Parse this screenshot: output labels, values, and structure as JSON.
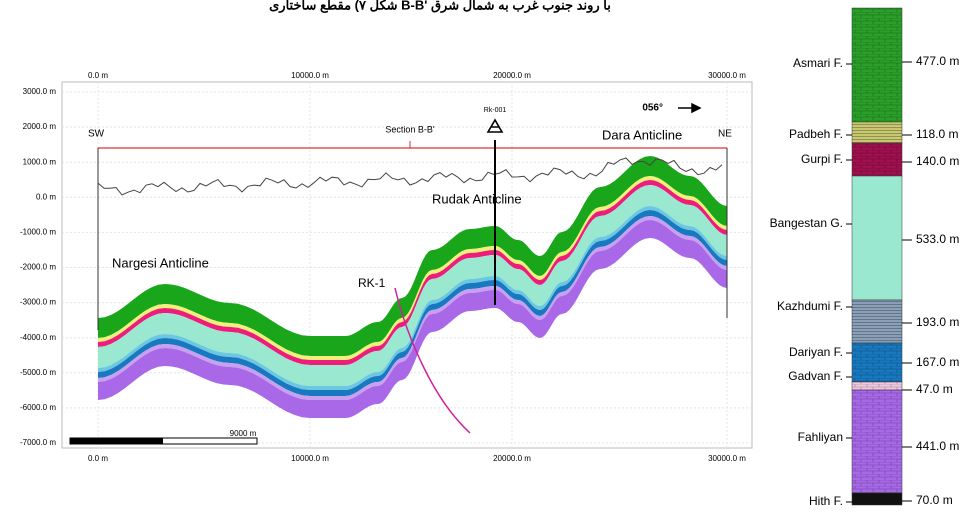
{
  "caption": "شکل ۷) مقطع ساختاری B-B' با روند جنوب غرب به شمال شرق",
  "section": {
    "x_ticks": [
      "0.0 m",
      "10000.0 m",
      "20000.0 m",
      "30000.0 m"
    ],
    "y_ticks": [
      "3000.0 m",
      "2000.0 m",
      "1000.0 m",
      "0.0 m",
      "-1000.0 m",
      "-2000.0 m",
      "-3000.0 m",
      "-4000.0 m",
      "-5000.0 m",
      "-6000.0 m",
      "-7000.0 m"
    ],
    "sw": "SW",
    "ne": "NE",
    "section_name": "Section B-B'",
    "well_top": "Rk-001",
    "azimuth": "056°",
    "anticlines": [
      "Nargesi Anticline",
      "Rudak Anticline",
      "Dara Anticline"
    ],
    "well_deviated": "RK-1",
    "scale": "9000 m"
  },
  "column": {
    "title": "Rk-001",
    "formations": [
      {
        "name": "Asmari F.",
        "thickness": "477.0 m"
      },
      {
        "name": "Padbeh F.",
        "thickness": "118.0 m"
      },
      {
        "name": "Gurpi F.",
        "thickness": "140.0 m"
      },
      {
        "name": "Bangestan G.",
        "thickness": "533.0 m"
      },
      {
        "name": "Kazhdumi F.",
        "thickness": "193.0 m"
      },
      {
        "name": "Dariyan F.",
        "thickness": "167.0 m"
      },
      {
        "name": "Gadvan F.",
        "thickness": "47.0 m"
      },
      {
        "name": "Fahliyan",
        "thickness": "441.0 m"
      },
      {
        "name": "Hith F.",
        "thickness": "70.0 m"
      }
    ]
  }
}
